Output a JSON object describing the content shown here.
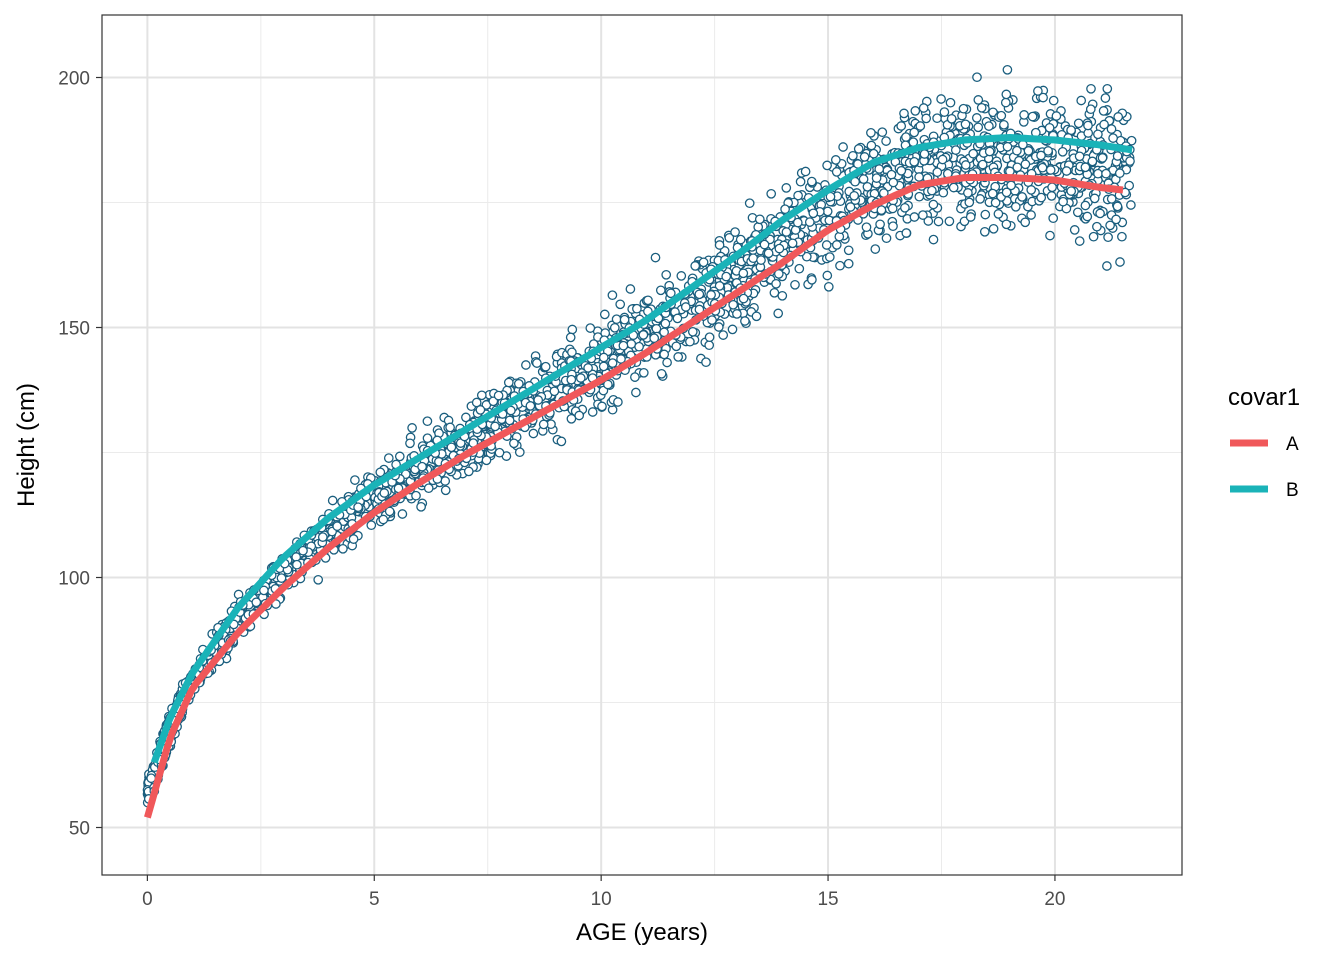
{
  "chart_data": {
    "type": "scatter",
    "title": "",
    "xlabel": "AGE (years)",
    "ylabel": "Height (cm)",
    "xlim": [
      -1.0,
      22.8
    ],
    "ylim": [
      40.5,
      212.5
    ],
    "x_ticks": [
      0,
      5,
      10,
      15,
      20
    ],
    "x_tick_labels": [
      "0",
      "5",
      "10",
      "15",
      "20"
    ],
    "y_ticks": [
      50,
      100,
      150,
      200
    ],
    "y_tick_labels": [
      "50",
      "100",
      "150",
      "200"
    ],
    "grid": true,
    "points": {
      "color": "#1a5e7e",
      "x_range": [
        0,
        21.7
      ],
      "note_shape": "open circles"
    },
    "series": [
      {
        "name": "A",
        "color": "#f0585a",
        "x": [
          0,
          0.5,
          1,
          2,
          3,
          4,
          5,
          6,
          7,
          8,
          9,
          10,
          11,
          12,
          13,
          14,
          15,
          16,
          17,
          18,
          19,
          20,
          21,
          21.5
        ],
        "y": [
          52,
          68,
          78,
          89,
          98,
          106,
          113,
          119,
          124.5,
          129.5,
          134.5,
          139.5,
          145,
          151,
          157,
          163,
          169.5,
          174.5,
          178.5,
          180,
          180,
          179.5,
          178,
          177.5
        ]
      },
      {
        "name": "B",
        "color": "#1ab3b8",
        "x": [
          0.15,
          0.5,
          1,
          2,
          3,
          4,
          5,
          6,
          7,
          8,
          9,
          10,
          11,
          12,
          13,
          14,
          15,
          16,
          17,
          18,
          19,
          20,
          21,
          21.7
        ],
        "y": [
          63,
          72,
          81,
          94,
          104,
          112,
          118.5,
          124,
          129.5,
          135,
          140.5,
          146,
          151.5,
          158,
          164.5,
          171.5,
          177.5,
          183,
          186,
          187.5,
          188,
          187.5,
          186.5,
          185.5
        ]
      }
    ],
    "legend": {
      "title": "covar1",
      "placement": "right",
      "entries": [
        {
          "label": "A",
          "color": "#f0585a"
        },
        {
          "label": "B",
          "color": "#1ab3b8"
        }
      ]
    }
  }
}
